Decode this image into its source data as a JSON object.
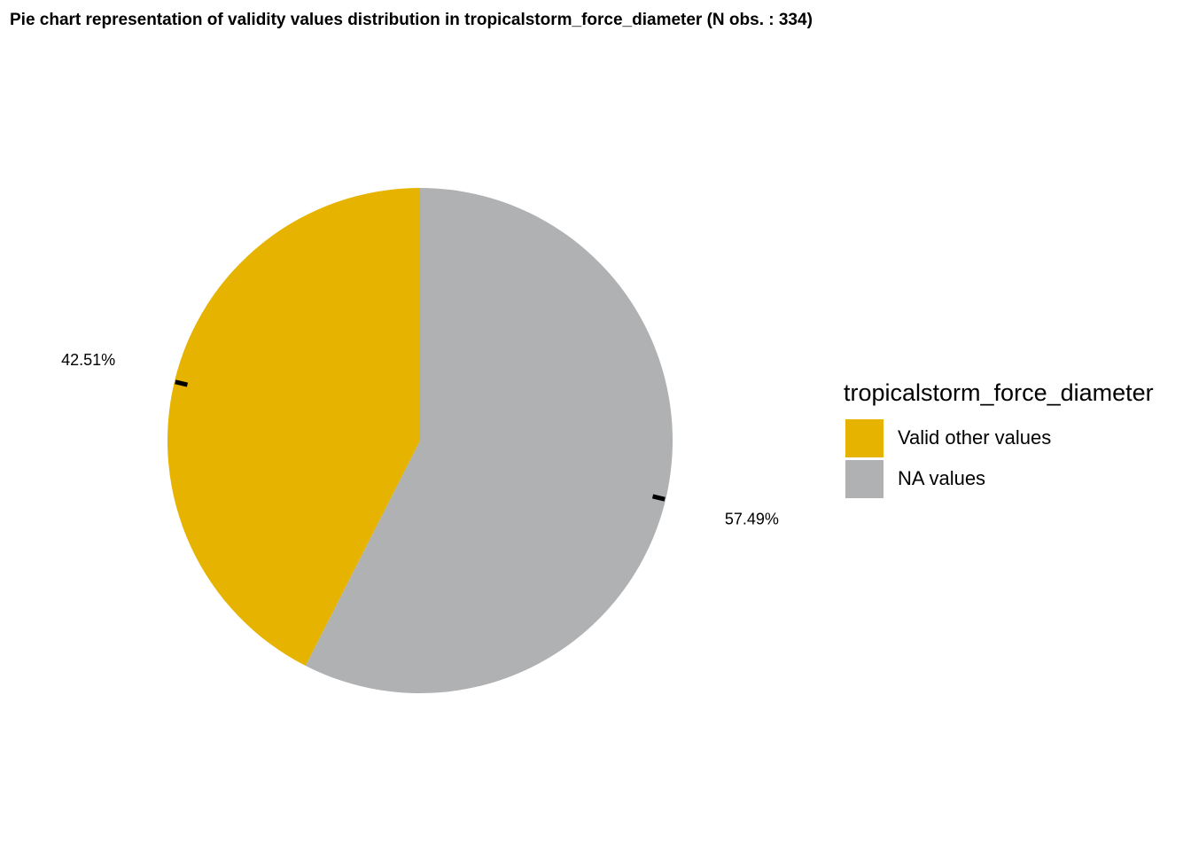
{
  "title": "Pie chart representation of validity values distribution in tropicalstorm_force_diameter (N obs. : 334)",
  "chart_data": {
    "type": "pie",
    "title": "Pie chart representation of validity values distribution in tropicalstorm_force_diameter (N obs. : 334)",
    "n_obs": 334,
    "legend_title": "tropicalstorm_force_diameter",
    "legend_position": "right",
    "slices": [
      {
        "name": "Valid other values",
        "value": 42.51,
        "label": "42.51%",
        "color": "#E6B400"
      },
      {
        "name": "NA values",
        "value": 57.49,
        "label": "57.49%",
        "color": "#B0B1B2"
      }
    ]
  }
}
